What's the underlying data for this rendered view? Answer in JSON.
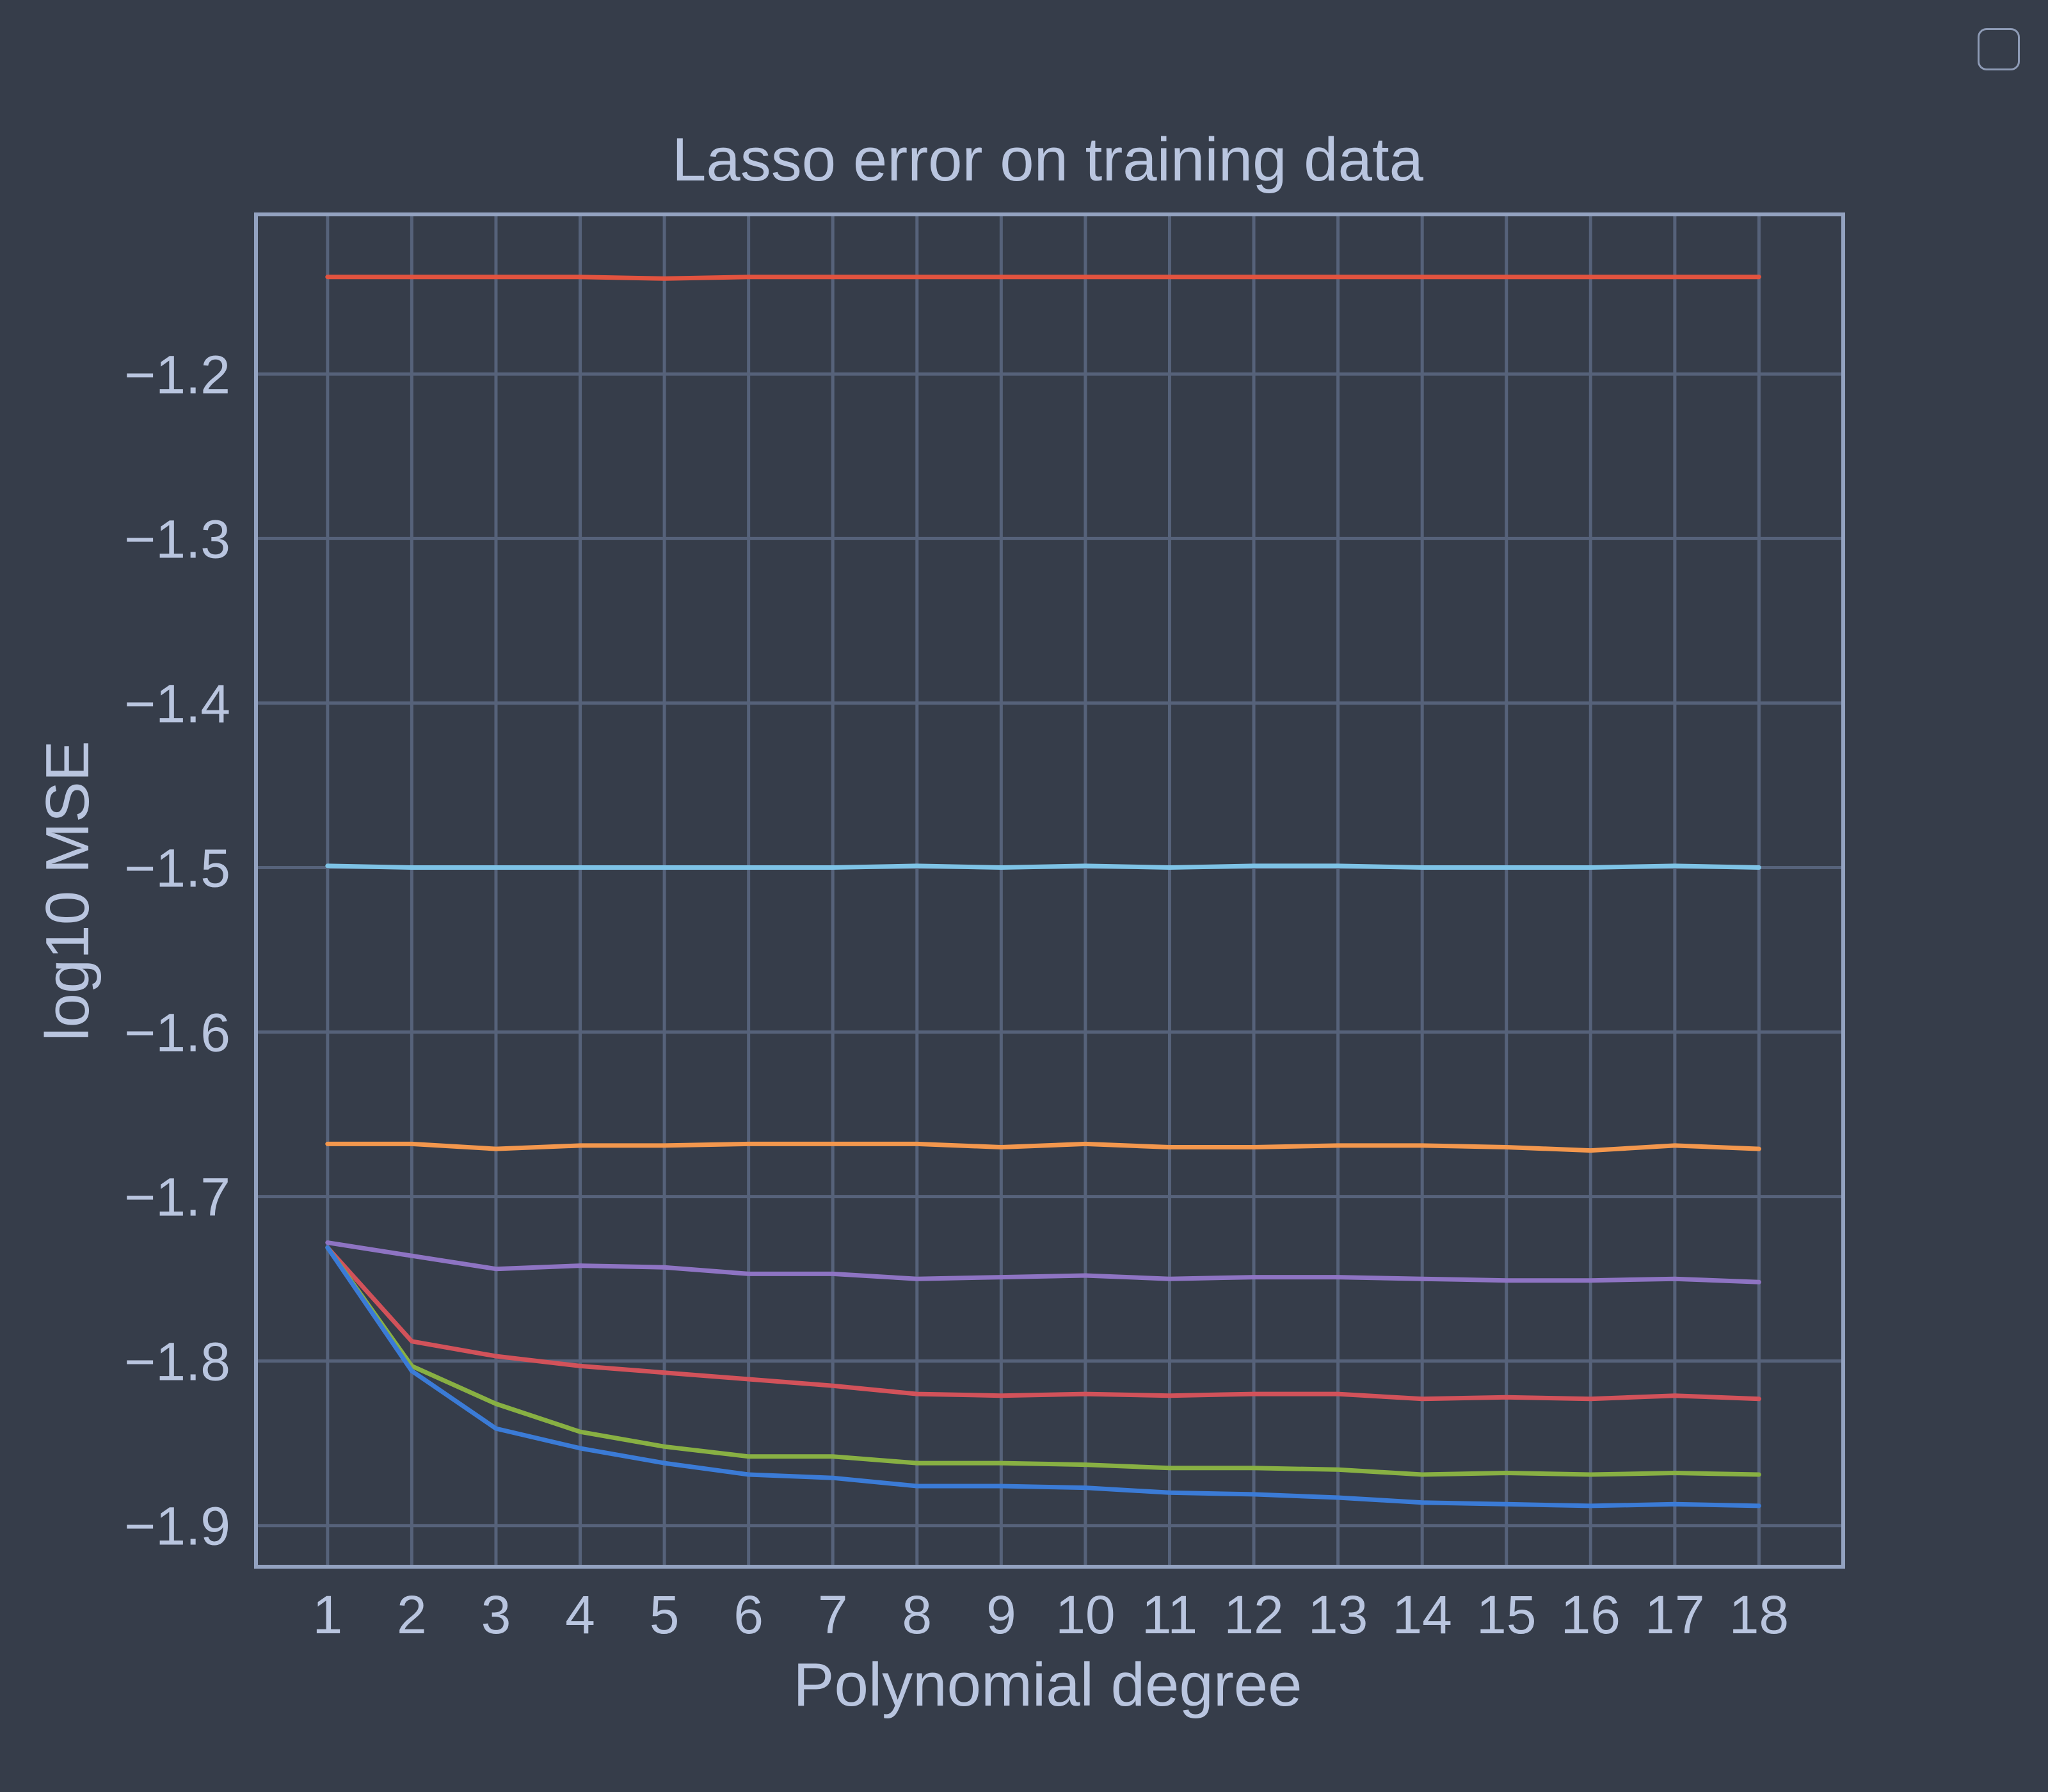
{
  "chart_data": {
    "type": "line",
    "title": "Lasso error on training data",
    "xlabel": "Polynomial degree",
    "ylabel": "log10 MSE",
    "x": [
      1,
      2,
      3,
      4,
      5,
      6,
      7,
      8,
      9,
      10,
      11,
      12,
      13,
      14,
      15,
      16,
      17,
      18
    ],
    "xlim": [
      0.15,
      19.0
    ],
    "ylim": [
      -1.925,
      -1.103
    ],
    "yticks": [
      -1.9,
      -1.8,
      -1.7,
      -1.6,
      -1.5,
      -1.4,
      -1.3,
      -1.2
    ],
    "ytick_labels": [
      "−1.9",
      "−1.8",
      "−1.7",
      "−1.6",
      "−1.5",
      "−1.4",
      "−1.3",
      "−1.2"
    ],
    "xtick_labels": [
      "1",
      "2",
      "3",
      "4",
      "5",
      "6",
      "7",
      "8",
      "9",
      "10",
      "11",
      "12",
      "13",
      "14",
      "15",
      "16",
      "17",
      "18"
    ],
    "grid": true,
    "legend": "top-right (empty)",
    "series": [
      {
        "color": "#e2533f",
        "values": [
          -1.141,
          -1.141,
          -1.141,
          -1.141,
          -1.142,
          -1.141,
          -1.141,
          -1.141,
          -1.141,
          -1.141,
          -1.141,
          -1.141,
          -1.141,
          -1.141,
          -1.141,
          -1.141,
          -1.141,
          -1.141
        ]
      },
      {
        "color": "#7ec3e6",
        "values": [
          -1.499,
          -1.5,
          -1.5,
          -1.5,
          -1.5,
          -1.5,
          -1.5,
          -1.499,
          -1.5,
          -1.499,
          -1.5,
          -1.499,
          -1.499,
          -1.5,
          -1.5,
          -1.5,
          -1.499,
          -1.5
        ]
      },
      {
        "color": "#f3974d",
        "values": [
          -1.668,
          -1.668,
          -1.671,
          -1.669,
          -1.669,
          -1.668,
          -1.668,
          -1.668,
          -1.67,
          -1.668,
          -1.67,
          -1.67,
          -1.669,
          -1.669,
          -1.67,
          -1.672,
          -1.669,
          -1.671
        ]
      },
      {
        "color": "#8e74c3",
        "values": [
          -1.728,
          -1.736,
          -1.744,
          -1.742,
          -1.743,
          -1.747,
          -1.747,
          -1.75,
          -1.749,
          -1.748,
          -1.75,
          -1.749,
          -1.749,
          -1.75,
          -1.751,
          -1.751,
          -1.75,
          -1.752
        ]
      },
      {
        "color": "#d2525a",
        "values": [
          -1.731,
          -1.788,
          -1.797,
          -1.803,
          -1.807,
          -1.811,
          -1.815,
          -1.82,
          -1.821,
          -1.82,
          -1.821,
          -1.82,
          -1.82,
          -1.823,
          -1.822,
          -1.823,
          -1.821,
          -1.823
        ]
      },
      {
        "color": "#88b043",
        "values": [
          -1.731,
          -1.803,
          -1.826,
          -1.843,
          -1.852,
          -1.858,
          -1.858,
          -1.862,
          -1.862,
          -1.863,
          -1.865,
          -1.865,
          -1.866,
          -1.869,
          -1.868,
          -1.869,
          -1.868,
          -1.869
        ]
      },
      {
        "color": "#3b7bd6",
        "values": [
          -1.731,
          -1.806,
          -1.841,
          -1.853,
          -1.862,
          -1.869,
          -1.871,
          -1.876,
          -1.876,
          -1.877,
          -1.88,
          -1.881,
          -1.883,
          -1.886,
          -1.887,
          -1.888,
          -1.887,
          -1.888
        ]
      }
    ]
  }
}
